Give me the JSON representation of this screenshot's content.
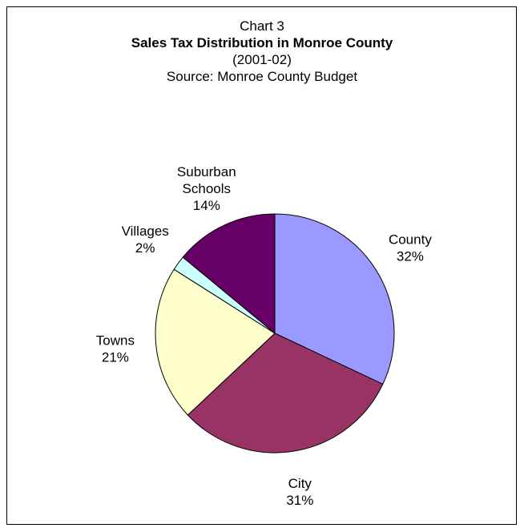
{
  "chart_data": {
    "type": "pie",
    "chart_number": "Chart 3",
    "title": "Sales Tax Distribution in Monroe County",
    "subtitle": "(2001-02)",
    "source": "Source: Monroe County Budget",
    "start_angle_deg": 0,
    "direction": "clockwise",
    "slices": [
      {
        "label_lines": [
          "County"
        ],
        "percent_label": "32%",
        "value": 32,
        "color": "#9999FF"
      },
      {
        "label_lines": [
          "City"
        ],
        "percent_label": "31%",
        "value": 31,
        "color": "#993366"
      },
      {
        "label_lines": [
          "Towns"
        ],
        "percent_label": "21%",
        "value": 21,
        "color": "#FFFFCC"
      },
      {
        "label_lines": [
          "Villages"
        ],
        "percent_label": "2%",
        "value": 2,
        "color": "#CCFFFF"
      },
      {
        "label_lines": [
          "Suburban",
          "Schools"
        ],
        "percent_label": "14%",
        "value": 14,
        "color": "#660066"
      }
    ]
  }
}
